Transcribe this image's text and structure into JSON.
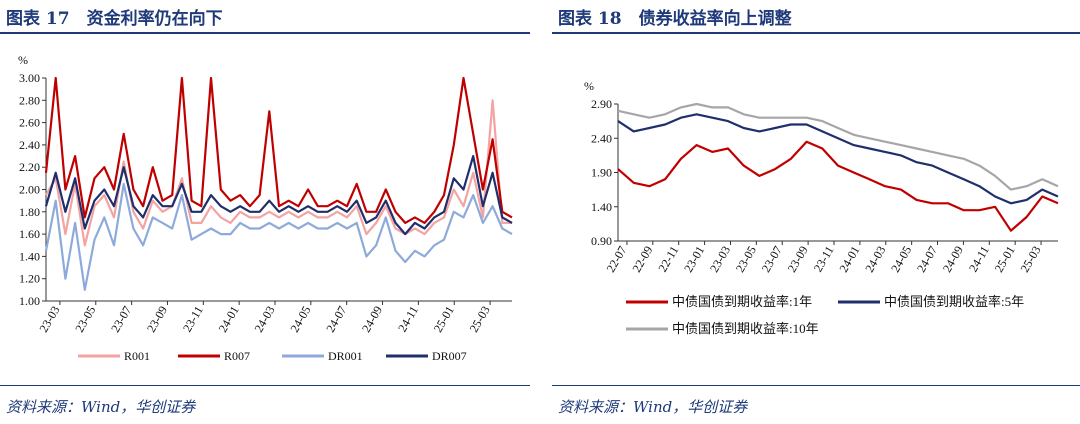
{
  "left": {
    "figure_title": "图表 17　资金利率仍在向下",
    "source": "资料来源：Wind，华创证券"
  },
  "right": {
    "figure_title": "图表 18　债券收益率向上调整",
    "source": "资料来源：Wind，华创证券"
  },
  "chart_data": [
    {
      "type": "line",
      "title": "",
      "ylabel": "%",
      "ylim": [
        1.0,
        3.0
      ],
      "yticks": [
        "1.00",
        "1.20",
        "1.40",
        "1.60",
        "1.80",
        "2.00",
        "2.20",
        "2.40",
        "2.60",
        "2.80",
        "3.00"
      ],
      "x_tick_labels": [
        "23-03",
        "23-05",
        "23-07",
        "23-09",
        "23-11",
        "24-01",
        "24-03",
        "24-05",
        "24-07",
        "24-09",
        "24-11",
        "25-01",
        "25-03"
      ],
      "legend_position": "bottom",
      "series": [
        {
          "name": "R001",
          "color": "#f4a3a3",
          "values": [
            1.95,
            2.1,
            1.6,
            2.05,
            1.5,
            1.85,
            1.95,
            1.75,
            2.25,
            1.8,
            1.65,
            1.9,
            1.8,
            1.85,
            2.1,
            1.7,
            1.7,
            1.85,
            1.75,
            1.7,
            1.8,
            1.75,
            1.75,
            1.8,
            1.75,
            1.8,
            1.75,
            1.8,
            1.75,
            1.75,
            1.8,
            1.75,
            1.85,
            1.6,
            1.7,
            1.85,
            1.65,
            1.6,
            1.65,
            1.6,
            1.7,
            1.75,
            2.0,
            1.85,
            2.15,
            1.75,
            2.8,
            1.7,
            1.7
          ]
        },
        {
          "name": "R007",
          "color": "#c00000",
          "values": [
            2.15,
            3.0,
            2.0,
            2.3,
            1.75,
            2.1,
            2.2,
            2.0,
            2.5,
            2.0,
            1.85,
            2.2,
            1.9,
            1.95,
            3.0,
            1.9,
            1.85,
            3.0,
            2.0,
            1.9,
            1.95,
            1.85,
            1.95,
            2.7,
            1.85,
            1.9,
            1.85,
            2.0,
            1.85,
            1.85,
            1.9,
            1.85,
            2.05,
            1.8,
            1.8,
            2.0,
            1.8,
            1.7,
            1.75,
            1.7,
            1.8,
            1.95,
            2.4,
            3.0,
            2.5,
            2.0,
            2.45,
            1.8,
            1.75
          ]
        },
        {
          "name": "DR001",
          "color": "#8eaadb",
          "values": [
            1.45,
            1.9,
            1.2,
            1.7,
            1.1,
            1.55,
            1.75,
            1.5,
            2.05,
            1.65,
            1.5,
            1.75,
            1.7,
            1.65,
            1.95,
            1.55,
            1.6,
            1.65,
            1.6,
            1.6,
            1.7,
            1.65,
            1.65,
            1.7,
            1.65,
            1.7,
            1.65,
            1.7,
            1.65,
            1.65,
            1.7,
            1.65,
            1.7,
            1.4,
            1.5,
            1.75,
            1.45,
            1.35,
            1.45,
            1.4,
            1.5,
            1.55,
            1.8,
            1.75,
            1.95,
            1.7,
            1.85,
            1.65,
            1.6
          ]
        },
        {
          "name": "DR007",
          "color": "#1f2f6b",
          "values": [
            1.85,
            2.15,
            1.8,
            2.1,
            1.65,
            1.9,
            2.0,
            1.85,
            2.2,
            1.85,
            1.75,
            1.95,
            1.85,
            1.85,
            2.05,
            1.8,
            1.8,
            1.95,
            1.85,
            1.8,
            1.85,
            1.8,
            1.8,
            1.9,
            1.8,
            1.85,
            1.8,
            1.85,
            1.8,
            1.8,
            1.85,
            1.8,
            1.9,
            1.7,
            1.75,
            1.9,
            1.7,
            1.6,
            1.7,
            1.65,
            1.75,
            1.8,
            2.1,
            2.0,
            2.3,
            1.85,
            2.15,
            1.75,
            1.7
          ]
        }
      ]
    },
    {
      "type": "line",
      "title": "",
      "ylabel": "%",
      "ylim": [
        0.9,
        2.9
      ],
      "yticks": [
        "0.90",
        "1.40",
        "1.90",
        "2.40",
        "2.90"
      ],
      "x_tick_labels": [
        "22-07",
        "22-09",
        "22-11",
        "23-01",
        "23-03",
        "23-05",
        "23-07",
        "23-09",
        "23-11",
        "24-01",
        "24-03",
        "24-05",
        "24-07",
        "24-09",
        "24-11",
        "25-01",
        "25-03"
      ],
      "legend_position": "bottom",
      "series": [
        {
          "name": "中债国债到期收益率:1年",
          "color": "#c00000",
          "values": [
            1.95,
            1.75,
            1.7,
            1.8,
            2.1,
            2.3,
            2.2,
            2.25,
            2.0,
            1.85,
            1.95,
            2.1,
            2.35,
            2.25,
            2.0,
            1.9,
            1.8,
            1.7,
            1.65,
            1.5,
            1.45,
            1.45,
            1.35,
            1.35,
            1.4,
            1.05,
            1.25,
            1.55,
            1.45
          ]
        },
        {
          "name": "中债国债到期收益率:5年",
          "color": "#1f2f6b",
          "values": [
            2.65,
            2.5,
            2.55,
            2.6,
            2.7,
            2.75,
            2.7,
            2.65,
            2.55,
            2.5,
            2.55,
            2.6,
            2.6,
            2.5,
            2.4,
            2.3,
            2.25,
            2.2,
            2.15,
            2.05,
            2.0,
            1.9,
            1.8,
            1.7,
            1.55,
            1.45,
            1.5,
            1.65,
            1.55
          ]
        },
        {
          "name": "中债国债到期收益率:10年",
          "color": "#a6a6a6",
          "values": [
            2.8,
            2.75,
            2.7,
            2.75,
            2.85,
            2.9,
            2.85,
            2.85,
            2.75,
            2.7,
            2.7,
            2.7,
            2.7,
            2.65,
            2.55,
            2.45,
            2.4,
            2.35,
            2.3,
            2.25,
            2.2,
            2.15,
            2.1,
            2.0,
            1.85,
            1.65,
            1.7,
            1.8,
            1.7
          ]
        }
      ]
    }
  ]
}
